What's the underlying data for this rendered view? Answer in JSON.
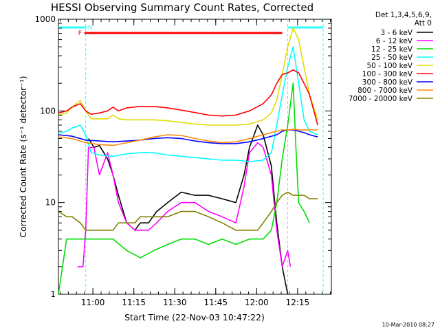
{
  "chart_data": {
    "type": "line",
    "title": "HESSI Observing Summary Count Rates, Corrected",
    "xlabel": "Start Time (22-Nov-03 10:47:22)",
    "ylabel": "Corrected Count Rate (s⁻¹ detector⁻¹)",
    "y_scale": "log",
    "ylim": [
      1,
      1000
    ],
    "y_ticks": [
      {
        "value": 1,
        "label": "1"
      },
      {
        "value": 10,
        "label": "10"
      },
      {
        "value": 100,
        "label": "100"
      },
      {
        "value": 1000,
        "label": "1000"
      }
    ],
    "x_ticks": [
      {
        "value": 12.63,
        "label": "11:00"
      },
      {
        "value": 27.63,
        "label": "11:15"
      },
      {
        "value": 42.63,
        "label": "11:30"
      },
      {
        "value": 57.63,
        "label": "11:45"
      },
      {
        "value": 72.63,
        "label": "12:00"
      },
      {
        "value": 87.63,
        "label": "12:15"
      }
    ],
    "xlim": [
      0,
      100
    ],
    "x_units": "minutes after 10:47:22",
    "legend_header": [
      "Det 1,3,4,5,6,9,",
      "Att 0"
    ],
    "legend_position": "right",
    "timestamp": "10-Mar-2010 08:27",
    "flags": {
      "night_marker": "N",
      "flare_marker": "F",
      "night_intervals": [
        [
          0,
          10
        ],
        [
          84,
          97
        ]
      ],
      "flare_interval": [
        9.5,
        82
      ]
    },
    "series": [
      {
        "name": "3 - 6 keV",
        "color": "#000000",
        "x": [
          0,
          5,
          9,
          11,
          12,
          13,
          15,
          18,
          20,
          22,
          25,
          28,
          30,
          33,
          36,
          40,
          45,
          50,
          55,
          60,
          65,
          68,
          70,
          73,
          75,
          78,
          80,
          82,
          84,
          86,
          88
        ],
        "y": [
          null,
          null,
          null,
          50,
          45,
          40,
          42,
          30,
          20,
          12,
          6,
          5,
          6,
          6,
          8,
          10,
          13,
          12,
          12,
          11,
          10,
          20,
          40,
          70,
          55,
          25,
          6,
          2,
          1,
          null,
          null
        ]
      },
      {
        "name": "6 - 12 keV",
        "color": "#ff00ff",
        "x": [
          0,
          5,
          7,
          9,
          10,
          11,
          13,
          15,
          18,
          20,
          22,
          25,
          28,
          30,
          33,
          36,
          40,
          45,
          50,
          55,
          60,
          65,
          68,
          70,
          73,
          75,
          78,
          80,
          82,
          84,
          85,
          86
        ],
        "y": [
          null,
          null,
          2,
          2,
          5,
          40,
          40,
          20,
          35,
          20,
          10,
          6,
          5,
          5,
          5,
          6,
          8,
          10,
          10,
          8,
          7,
          6,
          15,
          35,
          45,
          40,
          20,
          5,
          2,
          3,
          2,
          null
        ]
      },
      {
        "name": "12 - 25 keV",
        "color": "#00dd00",
        "x": [
          0,
          3,
          5,
          8,
          10,
          12,
          15,
          20,
          25,
          30,
          35,
          40,
          45,
          50,
          55,
          60,
          65,
          70,
          75,
          78,
          80,
          82,
          84,
          86,
          87,
          88,
          90,
          92
        ],
        "y": [
          1,
          4,
          4,
          4,
          4,
          4,
          4,
          4,
          3,
          2.5,
          3,
          3.5,
          4,
          4,
          3.5,
          4,
          3.5,
          4,
          4,
          5,
          10,
          30,
          70,
          200,
          40,
          10,
          8,
          6
        ]
      },
      {
        "name": "25 - 50 keV",
        "color": "#00ffff",
        "x": [
          0,
          3,
          5,
          8,
          10,
          12,
          15,
          20,
          25,
          30,
          35,
          40,
          45,
          50,
          55,
          60,
          65,
          70,
          75,
          78,
          80,
          82,
          84,
          86,
          88,
          90,
          92,
          95
        ],
        "y": [
          57,
          60,
          65,
          70,
          55,
          35,
          33,
          32,
          34,
          35,
          35,
          33,
          32,
          31,
          30,
          29,
          29,
          28,
          29,
          35,
          70,
          150,
          300,
          500,
          200,
          80,
          60,
          55
        ]
      },
      {
        "name": "50 - 100 keV",
        "color": "#dddd00",
        "x": [
          0,
          3,
          5,
          8,
          10,
          12,
          15,
          18,
          20,
          22,
          25,
          30,
          35,
          40,
          45,
          50,
          55,
          60,
          65,
          70,
          75,
          78,
          80,
          82,
          84,
          86,
          88,
          90,
          92,
          95
        ],
        "y": [
          90,
          95,
          110,
          130,
          100,
          82,
          82,
          82,
          90,
          82,
          80,
          80,
          80,
          78,
          75,
          72,
          70,
          70,
          70,
          72,
          80,
          95,
          130,
          250,
          500,
          800,
          600,
          300,
          150,
          80
        ]
      },
      {
        "name": "100 - 300 keV",
        "color": "#ff0000",
        "x": [
          0,
          3,
          5,
          8,
          10,
          12,
          15,
          18,
          20,
          22,
          25,
          30,
          35,
          40,
          45,
          50,
          55,
          60,
          65,
          70,
          75,
          78,
          80,
          82,
          84,
          86,
          88,
          90,
          92,
          95
        ],
        "y": [
          95,
          100,
          110,
          120,
          100,
          92,
          95,
          100,
          110,
          100,
          108,
          112,
          112,
          108,
          102,
          96,
          90,
          88,
          90,
          100,
          120,
          150,
          200,
          250,
          260,
          280,
          260,
          200,
          150,
          70
        ]
      },
      {
        "name": "300 - 800 keV",
        "color": "#0000ff",
        "x": [
          0,
          5,
          10,
          15,
          20,
          25,
          30,
          35,
          40,
          45,
          50,
          55,
          60,
          65,
          70,
          75,
          80,
          82,
          84,
          86,
          88,
          90,
          92,
          95
        ],
        "y": [
          55,
          53,
          48,
          47,
          46,
          47,
          48,
          50,
          51,
          50,
          47,
          45,
          44,
          44,
          46,
          50,
          55,
          60,
          62,
          62,
          60,
          58,
          55,
          52
        ]
      },
      {
        "name": "800 - 7000 keV",
        "color": "#ff8800",
        "x": [
          0,
          5,
          10,
          15,
          20,
          25,
          30,
          35,
          40,
          45,
          50,
          55,
          60,
          65,
          70,
          75,
          80,
          82,
          84,
          86,
          88,
          90,
          92,
          95
        ],
        "y": [
          52,
          50,
          45,
          43,
          42,
          45,
          48,
          52,
          55,
          54,
          50,
          47,
          45,
          46,
          50,
          55,
          60,
          62,
          62,
          63,
          62,
          62,
          62,
          62
        ]
      },
      {
        "name": "7000 - 20000 keV",
        "color": "#808000",
        "x": [
          0,
          3,
          5,
          8,
          10,
          12,
          15,
          18,
          20,
          22,
          25,
          28,
          30,
          33,
          36,
          40,
          45,
          50,
          55,
          60,
          65,
          68,
          70,
          73,
          75,
          78,
          80,
          82,
          84,
          86,
          88,
          90,
          92,
          95
        ],
        "y": [
          8,
          7,
          7,
          6,
          5,
          5,
          5,
          5,
          5,
          6,
          6,
          6,
          7,
          7,
          7,
          7,
          8,
          8,
          7,
          6,
          5,
          5,
          5,
          5,
          6,
          8,
          10,
          12,
          13,
          12,
          12,
          12,
          11,
          11
        ]
      }
    ]
  }
}
